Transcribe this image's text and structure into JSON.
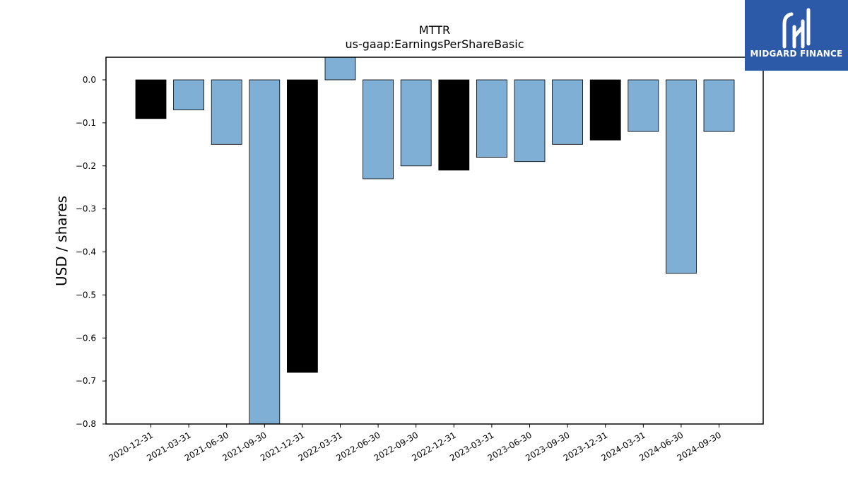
{
  "brand": {
    "name": "MIDGARD FINANCE",
    "logo_icon": "midgard-finance-logo-icon",
    "background_color": "#2c5aa8"
  },
  "chart_data": {
    "type": "bar",
    "title": "MTTR",
    "subtitle": "us-gaap:EarningsPerShareBasic",
    "xlabel": "",
    "ylabel": "USD / shares",
    "ylim": [
      -0.8,
      0.05
    ],
    "yticks": [
      0.0,
      -0.1,
      -0.2,
      -0.3,
      -0.4,
      -0.5,
      -0.6,
      -0.7,
      -0.8
    ],
    "ytick_labels": [
      "0.0",
      "−0.1",
      "−0.2",
      "−0.3",
      "−0.4",
      "−0.5",
      "−0.6",
      "−0.7",
      "−0.8"
    ],
    "grid": false,
    "categories": [
      "2020-12-31",
      "2021-03-31",
      "2021-06-30",
      "2021-09-30",
      "2021-12-31",
      "2022-03-31",
      "2022-06-30",
      "2022-09-30",
      "2022-12-31",
      "2023-03-31",
      "2023-06-30",
      "2023-09-30",
      "2023-12-31",
      "2024-03-31",
      "2024-06-30",
      "2024-09-30"
    ],
    "values": [
      -0.09,
      -0.07,
      -0.15,
      -0.82,
      -0.68,
      0.06,
      -0.23,
      -0.2,
      -0.21,
      -0.18,
      -0.19,
      -0.15,
      -0.14,
      -0.12,
      -0.45,
      -0.12
    ],
    "bar_colors": [
      "#000000",
      "#7fafd4",
      "#7fafd4",
      "#7fafd4",
      "#000000",
      "#7fafd4",
      "#7fafd4",
      "#7fafd4",
      "#000000",
      "#7fafd4",
      "#7fafd4",
      "#7fafd4",
      "#000000",
      "#7fafd4",
      "#7fafd4",
      "#7fafd4"
    ]
  }
}
